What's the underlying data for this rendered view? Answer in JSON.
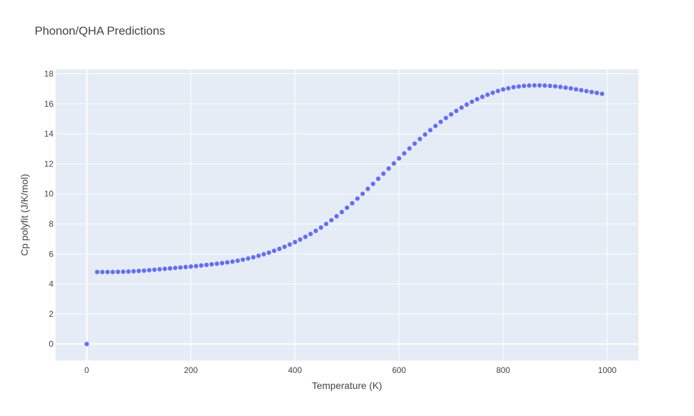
{
  "chart_data": {
    "type": "scatter",
    "title": "Phonon/QHA Predictions",
    "xlabel": "Temperature (K)",
    "ylabel": "Cp polyfit (J/K/mol)",
    "xlim": [
      -60,
      1060
    ],
    "ylim": [
      -1.1,
      18.3
    ],
    "xticks": [
      0,
      200,
      400,
      600,
      800,
      1000
    ],
    "yticks": [
      0,
      2,
      4,
      6,
      8,
      10,
      12,
      14,
      16,
      18
    ],
    "grid": true,
    "colors": {
      "background": "#E5ECF6",
      "grid": "#ffffff",
      "marker": "#636EFA"
    },
    "series": [
      {
        "x": [
          0,
          20,
          30,
          40,
          50,
          60,
          70,
          80,
          90,
          100,
          110,
          120,
          130,
          140,
          150,
          160,
          170,
          180,
          190,
          200,
          210,
          220,
          230,
          240,
          250,
          260,
          270,
          280,
          290,
          300,
          310,
          320,
          330,
          340,
          350,
          360,
          370,
          380,
          390,
          400,
          410,
          420,
          430,
          440,
          450,
          460,
          470,
          480,
          490,
          500,
          510,
          520,
          530,
          540,
          550,
          560,
          570,
          580,
          590,
          600,
          610,
          620,
          630,
          640,
          650,
          660,
          670,
          680,
          690,
          700,
          710,
          720,
          730,
          740,
          750,
          760,
          770,
          780,
          790,
          800,
          810,
          820,
          830,
          840,
          850,
          860,
          870,
          880,
          890,
          900,
          910,
          920,
          930,
          940,
          950,
          960,
          970,
          980,
          990
        ],
        "y": [
          0,
          4.8,
          4.8,
          4.8,
          4.8,
          4.81,
          4.82,
          4.83,
          4.85,
          4.87,
          4.89,
          4.92,
          4.95,
          4.98,
          5.01,
          5.04,
          5.07,
          5.1,
          5.13,
          5.16,
          5.19,
          5.23,
          5.27,
          5.31,
          5.35,
          5.39,
          5.44,
          5.49,
          5.55,
          5.62,
          5.7,
          5.78,
          5.88,
          5.98,
          6.09,
          6.21,
          6.34,
          6.48,
          6.63,
          6.79,
          6.96,
          7.14,
          7.33,
          7.54,
          7.76,
          8.0,
          8.25,
          8.51,
          8.79,
          9.08,
          9.38,
          9.69,
          10.01,
          10.34,
          10.67,
          11.01,
          11.35,
          11.69,
          12.03,
          12.37,
          12.7,
          13.03,
          13.35,
          13.66,
          13.96,
          14.25,
          14.53,
          14.8,
          15.06,
          15.3,
          15.53,
          15.75,
          15.95,
          16.14,
          16.31,
          16.47,
          16.61,
          16.74,
          16.86,
          16.96,
          17.04,
          17.11,
          17.16,
          17.2,
          17.22,
          17.23,
          17.23,
          17.22,
          17.2,
          17.17,
          17.13,
          17.08,
          17.03,
          16.97,
          16.91,
          16.85,
          16.79,
          16.73,
          16.67
        ]
      }
    ]
  }
}
